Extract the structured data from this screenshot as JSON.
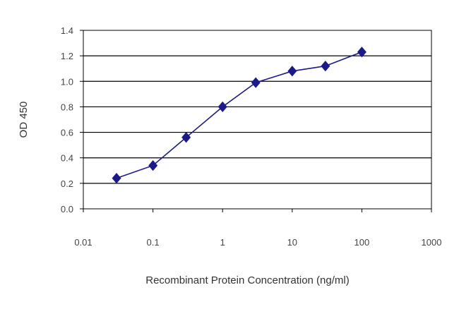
{
  "chart_data": {
    "type": "line",
    "title": "",
    "xlabel": "Recombinant Protein Concentration (ng/ml)",
    "ylabel": "OD 450",
    "xscale": "log",
    "xlim": [
      0.01,
      1000
    ],
    "ylim": [
      0.0,
      1.4
    ],
    "xticks": [
      "0.01",
      "0.1",
      "1",
      "10",
      "100",
      "1000"
    ],
    "yticks": [
      "0.0",
      "0.2",
      "0.4",
      "0.6",
      "0.8",
      "1.0",
      "1.2",
      "1.4"
    ],
    "grid": "horizontal",
    "legend": "none",
    "series": [
      {
        "x": [
          0.03,
          0.1,
          0.3,
          1,
          3,
          10,
          30,
          100
        ],
        "y": [
          0.24,
          0.34,
          0.56,
          0.8,
          0.99,
          1.08,
          1.12,
          1.23
        ],
        "color": "#1a1a8c",
        "marker": "diamond"
      }
    ]
  }
}
